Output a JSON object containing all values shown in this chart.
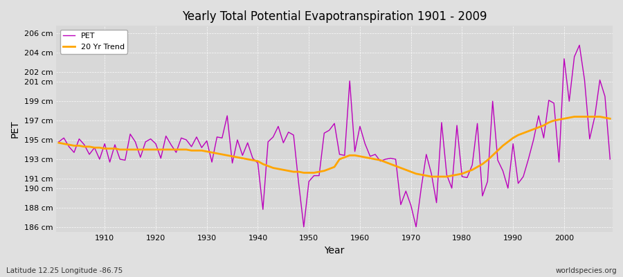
{
  "title": "Yearly Total Potential Evapotranspiration 1901 - 2009",
  "xlabel": "Year",
  "ylabel": "PET",
  "footnote_left": "Latitude 12.25 Longitude -86.75",
  "footnote_right": "worldspecies.org",
  "pet_color": "#BB00BB",
  "trend_color": "#FFA500",
  "bg_color": "#E0E0E0",
  "plot_bg_color": "#D8D8D8",
  "ylim": [
    185.5,
    206.8
  ],
  "yticks": [
    186,
    188,
    190,
    191,
    193,
    195,
    197,
    199,
    201,
    202,
    204,
    206
  ],
  "xlim": [
    1900.5,
    2009.5
  ],
  "xticks": [
    1910,
    1920,
    1930,
    1940,
    1950,
    1960,
    1970,
    1980,
    1990,
    2000
  ],
  "years": [
    1901,
    1902,
    1903,
    1904,
    1905,
    1906,
    1907,
    1908,
    1909,
    1910,
    1911,
    1912,
    1913,
    1914,
    1915,
    1916,
    1917,
    1918,
    1919,
    1920,
    1921,
    1922,
    1923,
    1924,
    1925,
    1926,
    1927,
    1928,
    1929,
    1930,
    1931,
    1932,
    1933,
    1934,
    1935,
    1936,
    1937,
    1938,
    1939,
    1940,
    1941,
    1942,
    1943,
    1944,
    1945,
    1946,
    1947,
    1948,
    1949,
    1950,
    1951,
    1952,
    1953,
    1954,
    1955,
    1956,
    1957,
    1958,
    1959,
    1960,
    1961,
    1962,
    1963,
    1964,
    1965,
    1966,
    1967,
    1968,
    1969,
    1970,
    1971,
    1972,
    1973,
    1974,
    1975,
    1976,
    1977,
    1978,
    1979,
    1980,
    1981,
    1982,
    1983,
    1984,
    1985,
    1986,
    1987,
    1988,
    1989,
    1990,
    1991,
    1992,
    1993,
    1994,
    1995,
    1996,
    1997,
    1998,
    1999,
    2000,
    2001,
    2002,
    2003,
    2004,
    2005,
    2006,
    2007,
    2008,
    2009
  ],
  "pet_values": [
    194.8,
    195.2,
    194.3,
    193.7,
    195.1,
    194.5,
    193.5,
    194.2,
    193.0,
    194.6,
    192.7,
    194.5,
    193.0,
    192.9,
    195.6,
    194.8,
    193.2,
    194.8,
    195.1,
    194.6,
    193.1,
    195.4,
    194.5,
    193.7,
    195.2,
    195.0,
    194.3,
    195.3,
    194.2,
    194.9,
    192.7,
    195.3,
    195.2,
    197.5,
    192.6,
    195.0,
    193.4,
    194.7,
    193.1,
    192.6,
    187.8,
    194.8,
    195.3,
    196.4,
    194.7,
    195.8,
    195.5,
    190.5,
    186.0,
    190.7,
    191.3,
    191.3,
    195.7,
    196.0,
    196.7,
    193.5,
    193.4,
    201.1,
    193.8,
    196.4,
    194.6,
    193.3,
    193.5,
    192.8,
    193.0,
    193.1,
    193.0,
    188.3,
    189.7,
    188.2,
    186.0,
    190.0,
    193.5,
    191.5,
    188.5,
    196.8,
    191.4,
    190.0,
    196.5,
    191.2,
    191.1,
    192.4,
    196.7,
    189.2,
    190.7,
    199.0,
    192.9,
    191.8,
    190.0,
    194.6,
    190.5,
    191.2,
    193.0,
    195.0,
    197.5,
    195.2,
    199.1,
    198.8,
    192.7,
    203.4,
    199.0,
    203.6,
    204.8,
    201.2,
    195.1,
    197.4,
    201.2,
    199.5,
    193.0
  ],
  "trend_values": [
    194.7,
    194.6,
    194.5,
    194.4,
    194.4,
    194.3,
    194.3,
    194.2,
    194.2,
    194.1,
    194.1,
    194.1,
    194.0,
    194.0,
    194.0,
    194.0,
    194.0,
    194.0,
    194.0,
    194.0,
    194.0,
    194.0,
    194.0,
    194.0,
    194.0,
    194.0,
    193.9,
    193.9,
    193.9,
    193.8,
    193.7,
    193.6,
    193.5,
    193.4,
    193.3,
    193.2,
    193.1,
    193.0,
    192.9,
    192.8,
    192.5,
    192.3,
    192.1,
    192.0,
    191.9,
    191.8,
    191.7,
    191.7,
    191.6,
    191.6,
    191.6,
    191.7,
    191.8,
    192.0,
    192.2,
    193.0,
    193.2,
    193.4,
    193.4,
    193.3,
    193.2,
    193.1,
    193.0,
    192.9,
    192.7,
    192.5,
    192.3,
    192.1,
    191.9,
    191.7,
    191.5,
    191.4,
    191.3,
    191.2,
    191.2,
    191.2,
    191.2,
    191.3,
    191.4,
    191.5,
    191.7,
    191.9,
    192.2,
    192.5,
    192.9,
    193.4,
    193.9,
    194.4,
    194.8,
    195.2,
    195.5,
    195.7,
    195.9,
    196.1,
    196.3,
    196.5,
    196.8,
    197.0,
    197.1,
    197.2,
    197.3,
    197.4,
    197.4,
    197.4,
    197.4,
    197.4,
    197.4,
    197.3,
    197.2
  ]
}
